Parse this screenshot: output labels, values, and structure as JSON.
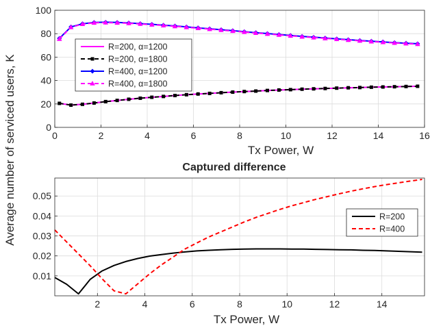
{
  "figure": {
    "ylabel": "Average number of serviced users, K"
  },
  "chart_data": [
    {
      "type": "line",
      "title": "",
      "xlabel": "Tx Power, W",
      "ylabel": "",
      "xlim": [
        0,
        16
      ],
      "ylim": [
        0,
        100
      ],
      "xticks": [
        0,
        2,
        4,
        6,
        8,
        10,
        12,
        14,
        16
      ],
      "yticks": [
        0,
        20,
        40,
        60,
        80,
        100
      ],
      "grid": true,
      "legend_position": "center-left",
      "x": [
        0.2,
        0.7,
        1.2,
        1.7,
        2.2,
        2.7,
        3.2,
        3.7,
        4.2,
        4.7,
        5.2,
        5.7,
        6.2,
        6.7,
        7.2,
        7.7,
        8.2,
        8.7,
        9.2,
        9.7,
        10.2,
        10.7,
        11.2,
        11.7,
        12.2,
        12.7,
        13.2,
        13.7,
        14.2,
        14.7,
        15.2,
        15.7
      ],
      "series": [
        {
          "name": "R=200, α=1200",
          "color": "#ff00ff",
          "line": "solid",
          "marker": "none",
          "values": [
            20.5,
            19.0,
            19.7,
            20.8,
            22.0,
            23.0,
            24.0,
            24.9,
            25.7,
            26.4,
            27.2,
            27.9,
            28.5,
            29.0,
            29.6,
            30.1,
            30.6,
            31.0,
            31.5,
            31.9,
            32.2,
            32.6,
            32.9,
            33.2,
            33.5,
            33.8,
            34.0,
            34.3,
            34.5,
            34.7,
            34.9,
            35.1
          ]
        },
        {
          "name": "R=200, α=1800",
          "color": "#000000",
          "line": "dashed",
          "marker": "square",
          "values": [
            20.5,
            19.0,
            19.7,
            20.8,
            22.0,
            23.0,
            24.0,
            24.9,
            25.7,
            26.4,
            27.2,
            27.9,
            28.5,
            29.0,
            29.6,
            30.1,
            30.6,
            31.0,
            31.5,
            31.9,
            32.2,
            32.6,
            32.9,
            33.2,
            33.5,
            33.8,
            34.0,
            34.3,
            34.5,
            34.7,
            34.9,
            35.1
          ]
        },
        {
          "name": "R=400, α=1200",
          "color": "#0000ff",
          "line": "solid",
          "marker": "diamond",
          "values": [
            76.0,
            85.8,
            88.5,
            89.6,
            89.8,
            89.6,
            89.2,
            88.6,
            88.0,
            87.3,
            86.6,
            85.8,
            85.0,
            84.2,
            83.4,
            82.6,
            81.7,
            80.9,
            80.1,
            79.3,
            78.5,
            77.7,
            77.0,
            76.3,
            75.6,
            74.9,
            74.2,
            73.6,
            73.0,
            72.4,
            71.9,
            71.4
          ]
        },
        {
          "name": "R=400, α=1800",
          "color": "#ff00ff",
          "line": "dashed",
          "marker": "triangle",
          "values": [
            75.5,
            85.5,
            88.2,
            89.3,
            89.5,
            89.3,
            88.9,
            88.3,
            87.7,
            87.0,
            86.3,
            85.5,
            84.7,
            83.9,
            83.1,
            82.3,
            81.4,
            80.6,
            79.8,
            79.0,
            78.2,
            77.4,
            76.7,
            76.0,
            75.3,
            74.6,
            73.9,
            73.3,
            72.7,
            72.1,
            71.6,
            71.1
          ]
        }
      ]
    },
    {
      "type": "line",
      "title": "Captured difference",
      "xlabel": "Tx Power, W",
      "ylabel": "",
      "xlim": [
        0.2,
        15.8
      ],
      "ylim": [
        0,
        0.059
      ],
      "xticks": [
        2,
        4,
        6,
        8,
        10,
        12,
        14
      ],
      "yticks": [
        0.01,
        0.02,
        0.03,
        0.04,
        0.05
      ],
      "grid": true,
      "legend_position": "right",
      "x": [
        0.2,
        0.7,
        1.2,
        1.7,
        2.2,
        2.7,
        3.2,
        3.7,
        4.2,
        4.7,
        5.2,
        5.7,
        6.2,
        6.7,
        7.2,
        7.7,
        8.2,
        8.7,
        9.2,
        9.7,
        10.2,
        10.7,
        11.2,
        11.7,
        12.2,
        12.7,
        13.2,
        13.7,
        14.2,
        14.7,
        15.2,
        15.7
      ],
      "series": [
        {
          "name": "R=200",
          "color": "#000000",
          "line": "solid",
          "values": [
            0.0092,
            0.0058,
            0.001,
            0.0083,
            0.0125,
            0.0152,
            0.0172,
            0.0187,
            0.0199,
            0.0207,
            0.0214,
            0.022,
            0.0225,
            0.0228,
            0.0231,
            0.0233,
            0.0234,
            0.0235,
            0.0235,
            0.0235,
            0.0234,
            0.0234,
            0.0233,
            0.0232,
            0.0231,
            0.023,
            0.0228,
            0.0227,
            0.0225,
            0.0223,
            0.0221,
            0.0219
          ]
        },
        {
          "name": "R=400",
          "color": "#ff0000",
          "line": "dashed",
          "values": [
            0.033,
            0.027,
            0.021,
            0.015,
            0.0085,
            0.0025,
            0.001,
            0.006,
            0.011,
            0.0155,
            0.0195,
            0.0235,
            0.0265,
            0.0295,
            0.032,
            0.0345,
            0.037,
            0.0393,
            0.0413,
            0.0433,
            0.0451,
            0.0467,
            0.0483,
            0.0497,
            0.0511,
            0.0524,
            0.0536,
            0.0547,
            0.0557,
            0.0566,
            0.0575,
            0.0583
          ]
        }
      ]
    }
  ]
}
